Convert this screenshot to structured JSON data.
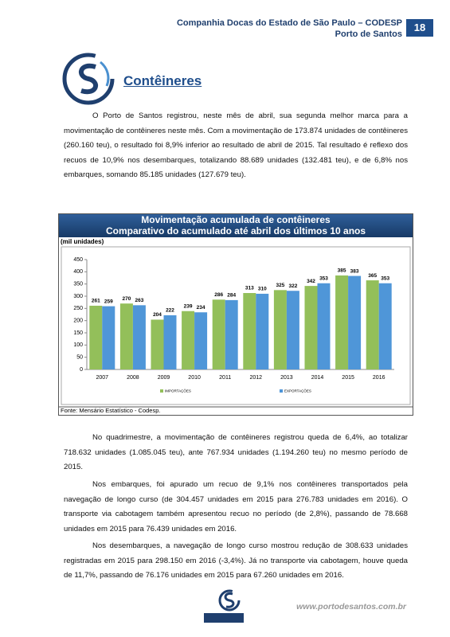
{
  "header": {
    "company": "Companhia Docas do Estado de São Paulo – CODESP",
    "port": "Porto de Santos",
    "page": "18"
  },
  "section_title": "Contêineres",
  "intro": "O Porto de Santos registrou, neste mês de abril, sua segunda melhor marca para a movimentação de contêineres neste mês. Com a movimentação de 173.874 unidades de contêineres (260.160 teu), o resultado foi 8,9% inferior ao resultado de abril de 2015. Tal resultado é reflexo dos recuos de 10,9% nos desembarques, totalizando 88.689 unidades (132.481 teu), e de 6,8% nos embarques, somando 85.185 unidades (127.679 teu).",
  "chart_data": {
    "type": "bar",
    "title": "Movimentação acumulada de contêineres",
    "subtitle": "Comparativo do acumulado até abril dos últimos 10 anos",
    "y_label": "(mil unidades)",
    "source": "Fonte: Mensário Estatístico - Codesp.",
    "categories": [
      "2007",
      "2008",
      "2009",
      "2010",
      "2011",
      "2012",
      "2013",
      "2014",
      "2015",
      "2016"
    ],
    "series": [
      {
        "name": "IMPORTAÇÕES",
        "color": "#93bf5a",
        "values": [
          261,
          270,
          204,
          239,
          286,
          313,
          325,
          342,
          385,
          365
        ]
      },
      {
        "name": "EXPORTAÇÕES",
        "color": "#4f96d8",
        "values": [
          259,
          263,
          222,
          234,
          284,
          310,
          322,
          353,
          383,
          353
        ]
      }
    ],
    "ylim": [
      0,
      450
    ],
    "yticks": [
      0,
      50,
      100,
      150,
      200,
      250,
      300,
      350,
      400,
      450
    ],
    "grid": false
  },
  "paragraphs": [
    "No quadrimestre, a movimentação de contêineres registrou queda de 6,4%, ao totalizar 718.632 unidades (1.085.045 teu), ante 767.934 unidades (1.194.260 teu) no mesmo período de 2015.",
    "Nos embarques, foi apurado um recuo de 9,1% nos contêineres transportados pela navegação de longo curso (de 304.457 unidades em 2015 para 276.783 unidades em 2016). O transporte via cabotagem também apresentou recuo no período (de 2,8%), passando de 78.668 unidades em 2015 para 76.439 unidades em 2016.",
    "Nos desembarques, a navegação de longo curso mostrou redução de 308.633 unidades registradas em 2015 para 298.150 em 2016 (-3,4%). Já no transporte via cabotagem, houve queda de 11,7%, passando de 76.176 unidades em 2015 para 67.260 unidades em 2016."
  ],
  "footer": {
    "url": "www.portodesantos.com.br"
  }
}
